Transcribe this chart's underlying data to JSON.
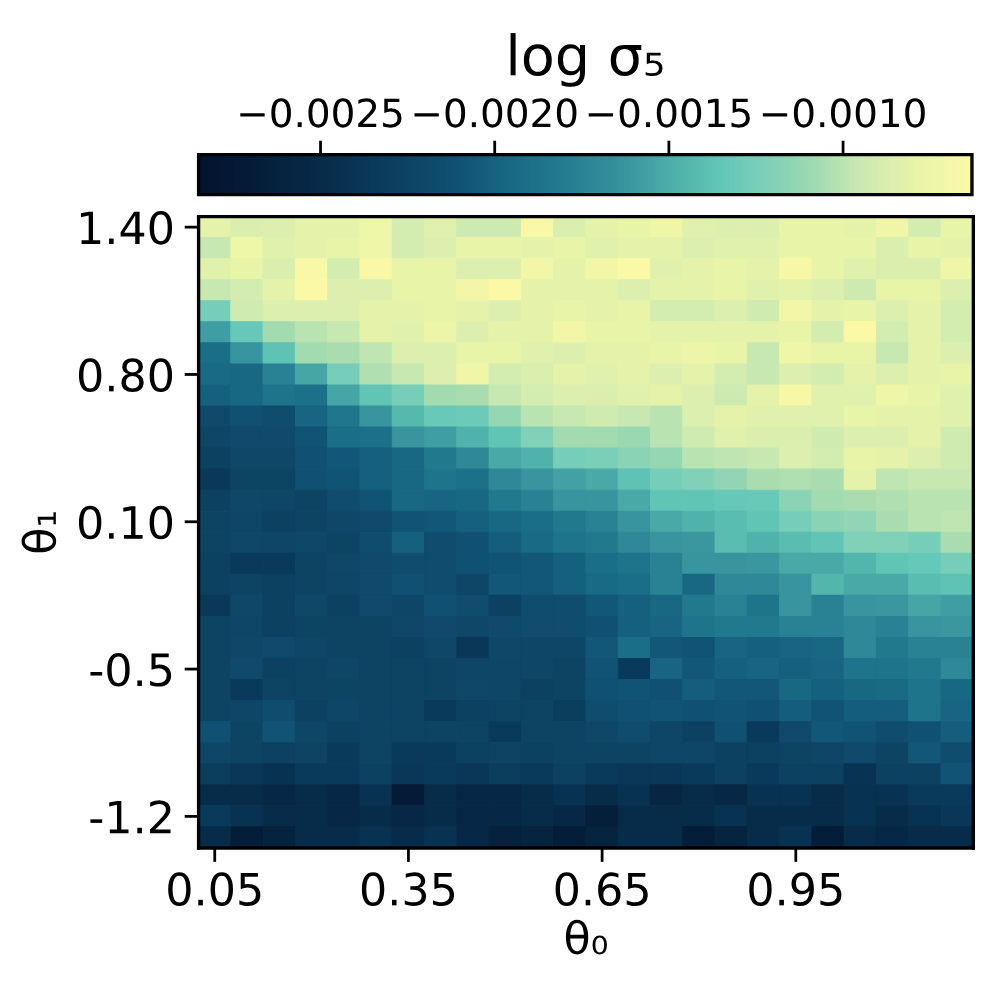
{
  "chart_data": {
    "type": "heatmap",
    "xlabel": "θ₀",
    "ylabel": "θ₁",
    "clabel": "log σ₅",
    "categories": [
      "0.05",
      null,
      null,
      null,
      null,
      null,
      "0.35",
      null,
      null,
      null,
      null,
      null,
      "0.65",
      null,
      null,
      null,
      null,
      null,
      "0.95",
      null,
      null,
      null,
      null,
      null
    ],
    "y_categories": [
      "1.40",
      null,
      null,
      null,
      null,
      null,
      null,
      "0.80",
      null,
      null,
      null,
      null,
      null,
      null,
      "0.10",
      null,
      null,
      null,
      null,
      null,
      null,
      "-0.5",
      null,
      null,
      null,
      null,
      null,
      null,
      "-1.2",
      null
    ],
    "clim": [
      -0.00285,
      -0.00063
    ],
    "cticks": [
      {
        "value": -0.0025,
        "label": "−0.0025"
      },
      {
        "value": -0.002,
        "label": "−0.0020"
      },
      {
        "value": -0.0015,
        "label": "−0.0015"
      },
      {
        "value": -0.001,
        "label": "−0.0010"
      }
    ],
    "cells": [
      [
        -0.00081,
        -0.00087,
        -0.00085,
        -0.00081,
        -0.00081,
        -0.00074,
        -0.0009,
        -0.00083,
        -0.00094,
        -0.00094,
        -0.00065,
        -0.00087,
        -0.00081,
        -0.00079,
        -0.00072,
        -0.00083,
        -0.00085,
        -0.00085,
        -0.00079,
        -0.00079,
        -0.00081,
        -0.00072,
        -0.0009,
        -0.00079
      ],
      [
        -0.00096,
        -0.00074,
        -0.00083,
        -0.00081,
        -0.00079,
        -0.00072,
        -0.0009,
        -0.00085,
        -0.00079,
        -0.00079,
        -0.00081,
        -0.00079,
        -0.00083,
        -0.00081,
        -0.00081,
        -0.00085,
        -0.00083,
        -0.00083,
        -0.00079,
        -0.00079,
        -0.00079,
        -0.00087,
        -0.00079,
        -0.00081
      ],
      [
        -0.00083,
        -0.00079,
        -0.00087,
        -0.00065,
        -0.0009,
        -0.00065,
        -0.00079,
        -0.00079,
        -0.00085,
        -0.00085,
        -0.0007,
        -0.00081,
        -0.0007,
        -0.00063,
        -0.00083,
        -0.00081,
        -0.00079,
        -0.00081,
        -0.00067,
        -0.00079,
        -0.00083,
        -0.00087,
        -0.00087,
        -0.00072
      ],
      [
        -0.00096,
        -0.0009,
        -0.00081,
        -0.00063,
        -0.00085,
        -0.00085,
        -0.00079,
        -0.00079,
        -0.0007,
        -0.00063,
        -0.00081,
        -0.00081,
        -0.00081,
        -0.00085,
        -0.00081,
        -0.00081,
        -0.00079,
        -0.00083,
        -0.00081,
        -0.00085,
        -0.00094,
        -0.00079,
        -0.00079,
        -0.00085
      ],
      [
        -0.00125,
        -0.00092,
        -0.00085,
        -0.00085,
        -0.00085,
        -0.00081,
        -0.00081,
        -0.00079,
        -0.00081,
        -0.00085,
        -0.00081,
        -0.00079,
        -0.00081,
        -0.00079,
        -0.0009,
        -0.0009,
        -0.00085,
        -0.00092,
        -0.0007,
        -0.00081,
        -0.00079,
        -0.00085,
        -0.00081,
        -0.0009
      ],
      [
        -0.00158,
        -0.00134,
        -0.00107,
        -0.00101,
        -0.00096,
        -0.00081,
        -0.00083,
        -0.00076,
        -0.00085,
        -0.00081,
        -0.00081,
        -0.0007,
        -0.00079,
        -0.00079,
        -0.00081,
        -0.00081,
        -0.00081,
        -0.00081,
        -0.00079,
        -0.0009,
        -0.00063,
        -0.0009,
        -0.00081,
        -0.0009
      ],
      [
        -0.00192,
        -0.00163,
        -0.00138,
        -0.00107,
        -0.00105,
        -0.00099,
        -0.00085,
        -0.00085,
        -0.00079,
        -0.00079,
        -0.00083,
        -0.00085,
        -0.00081,
        -0.00081,
        -0.00079,
        -0.00076,
        -0.00079,
        -0.00096,
        -0.00072,
        -0.00079,
        -0.00079,
        -0.00096,
        -0.00081,
        -0.00085
      ],
      [
        -0.00194,
        -0.00196,
        -0.00176,
        -0.00154,
        -0.00125,
        -0.00103,
        -0.00096,
        -0.00085,
        -0.00072,
        -0.0009,
        -0.00087,
        -0.00081,
        -0.00083,
        -0.00081,
        -0.00085,
        -0.00081,
        -0.0009,
        -0.00096,
        -0.00085,
        -0.0009,
        -0.00081,
        -0.00085,
        -0.00081,
        -0.00079
      ],
      [
        -0.00201,
        -0.00196,
        -0.00187,
        -0.0019,
        -0.00154,
        -0.00136,
        -0.00125,
        -0.00107,
        -0.00105,
        -0.00096,
        -0.0009,
        -0.00085,
        -0.00087,
        -0.00083,
        -0.00081,
        -0.00085,
        -0.00094,
        -0.00081,
        -0.00067,
        -0.00083,
        -0.00083,
        -0.00072,
        -0.00079,
        -0.00083
      ],
      [
        -0.00218,
        -0.00212,
        -0.00216,
        -0.00198,
        -0.00185,
        -0.00163,
        -0.00143,
        -0.00132,
        -0.0013,
        -0.00112,
        -0.00101,
        -0.00096,
        -0.00092,
        -0.00096,
        -0.00101,
        -0.00085,
        -0.00081,
        -0.00083,
        -0.00083,
        -0.00083,
        -0.00079,
        -0.00081,
        -0.00081,
        -0.00083
      ],
      [
        -0.00223,
        -0.00218,
        -0.00218,
        -0.0021,
        -0.00192,
        -0.0019,
        -0.00163,
        -0.00158,
        -0.00147,
        -0.00136,
        -0.00121,
        -0.00107,
        -0.00107,
        -0.0011,
        -0.00101,
        -0.00092,
        -0.00083,
        -0.00087,
        -0.00087,
        -0.00092,
        -0.00085,
        -0.00085,
        -0.00081,
        -0.00092
      ],
      [
        -0.00227,
        -0.00221,
        -0.00221,
        -0.00212,
        -0.00207,
        -0.00201,
        -0.00196,
        -0.00183,
        -0.00172,
        -0.00152,
        -0.00147,
        -0.00125,
        -0.00123,
        -0.00116,
        -0.00112,
        -0.00101,
        -0.00099,
        -0.00096,
        -0.00085,
        -0.0009,
        -0.00079,
        -0.00081,
        -0.00085,
        -0.00092
      ],
      [
        -0.00236,
        -0.00225,
        -0.00225,
        -0.00212,
        -0.0021,
        -0.00201,
        -0.00196,
        -0.00187,
        -0.0019,
        -0.00172,
        -0.00163,
        -0.00156,
        -0.00152,
        -0.00138,
        -0.00125,
        -0.00121,
        -0.00114,
        -0.00105,
        -0.00103,
        -0.00105,
        -0.00081,
        -0.00099,
        -0.00096,
        -0.00096
      ],
      [
        -0.00227,
        -0.00221,
        -0.00223,
        -0.00225,
        -0.00216,
        -0.0021,
        -0.00196,
        -0.00198,
        -0.00196,
        -0.00183,
        -0.00176,
        -0.00163,
        -0.00163,
        -0.00152,
        -0.00136,
        -0.00136,
        -0.00134,
        -0.00132,
        -0.00116,
        -0.00107,
        -0.00105,
        -0.00103,
        -0.00101,
        -0.00101
      ],
      [
        -0.00225,
        -0.00223,
        -0.00227,
        -0.00225,
        -0.00221,
        -0.00218,
        -0.0021,
        -0.00207,
        -0.00201,
        -0.00196,
        -0.00192,
        -0.00183,
        -0.00176,
        -0.00163,
        -0.00152,
        -0.00147,
        -0.00141,
        -0.00136,
        -0.00125,
        -0.00116,
        -0.00114,
        -0.00105,
        -0.00101,
        -0.00099
      ],
      [
        -0.00225,
        -0.00221,
        -0.00223,
        -0.00221,
        -0.00225,
        -0.00216,
        -0.00201,
        -0.00216,
        -0.00212,
        -0.00203,
        -0.00194,
        -0.00187,
        -0.00183,
        -0.00172,
        -0.00163,
        -0.00161,
        -0.00141,
        -0.00147,
        -0.00141,
        -0.00136,
        -0.00121,
        -0.00121,
        -0.00125,
        -0.00105
      ],
      [
        -0.00227,
        -0.00234,
        -0.00234,
        -0.00225,
        -0.00221,
        -0.00218,
        -0.00216,
        -0.00216,
        -0.00212,
        -0.0021,
        -0.00207,
        -0.00201,
        -0.00192,
        -0.00187,
        -0.00176,
        -0.00163,
        -0.00163,
        -0.00161,
        -0.00152,
        -0.00152,
        -0.00145,
        -0.00136,
        -0.00134,
        -0.00125
      ],
      [
        -0.00227,
        -0.00225,
        -0.00227,
        -0.00225,
        -0.00223,
        -0.00218,
        -0.00212,
        -0.00216,
        -0.00223,
        -0.00207,
        -0.00207,
        -0.00201,
        -0.00194,
        -0.00192,
        -0.00176,
        -0.00196,
        -0.00172,
        -0.00172,
        -0.00163,
        -0.00145,
        -0.00152,
        -0.00152,
        -0.00141,
        -0.00138
      ],
      [
        -0.00236,
        -0.00221,
        -0.00227,
        -0.00221,
        -0.00227,
        -0.00218,
        -0.00223,
        -0.00212,
        -0.00216,
        -0.00227,
        -0.00216,
        -0.00216,
        -0.00207,
        -0.00201,
        -0.00196,
        -0.00183,
        -0.00176,
        -0.00187,
        -0.00163,
        -0.00176,
        -0.00163,
        -0.00161,
        -0.00154,
        -0.00158
      ],
      [
        -0.00225,
        -0.00223,
        -0.00227,
        -0.00225,
        -0.00225,
        -0.00225,
        -0.00221,
        -0.00218,
        -0.00221,
        -0.00218,
        -0.00216,
        -0.00216,
        -0.00212,
        -0.00201,
        -0.00198,
        -0.00187,
        -0.00183,
        -0.00183,
        -0.00176,
        -0.00176,
        -0.00172,
        -0.00176,
        -0.00163,
        -0.00161
      ],
      [
        -0.00225,
        -0.00221,
        -0.00218,
        -0.00223,
        -0.00225,
        -0.00225,
        -0.00227,
        -0.00221,
        -0.00238,
        -0.00221,
        -0.00223,
        -0.00223,
        -0.00207,
        -0.00192,
        -0.00207,
        -0.0021,
        -0.00198,
        -0.00201,
        -0.00198,
        -0.00196,
        -0.00172,
        -0.00183,
        -0.00176,
        -0.00176
      ],
      [
        -0.00225,
        -0.00218,
        -0.00227,
        -0.00225,
        -0.00223,
        -0.00225,
        -0.00225,
        -0.00225,
        -0.00223,
        -0.00223,
        -0.00223,
        -0.00225,
        -0.0021,
        -0.00234,
        -0.00198,
        -0.00207,
        -0.00201,
        -0.00198,
        -0.00201,
        -0.00198,
        -0.00187,
        -0.00187,
        -0.00183,
        -0.00172
      ],
      [
        -0.00225,
        -0.00234,
        -0.00225,
        -0.00225,
        -0.00225,
        -0.00225,
        -0.00225,
        -0.00225,
        -0.00221,
        -0.00223,
        -0.00227,
        -0.00225,
        -0.00212,
        -0.0021,
        -0.00212,
        -0.00203,
        -0.00207,
        -0.00207,
        -0.00196,
        -0.00201,
        -0.00196,
        -0.00194,
        -0.00187,
        -0.00196
      ],
      [
        -0.00225,
        -0.00223,
        -0.00216,
        -0.00227,
        -0.00223,
        -0.00225,
        -0.00225,
        -0.00234,
        -0.00227,
        -0.00225,
        -0.00225,
        -0.00232,
        -0.00216,
        -0.00212,
        -0.0021,
        -0.00212,
        -0.0021,
        -0.00212,
        -0.00203,
        -0.0021,
        -0.00203,
        -0.00203,
        -0.00187,
        -0.00198
      ],
      [
        -0.00212,
        -0.00225,
        -0.0021,
        -0.00223,
        -0.00227,
        -0.00225,
        -0.00225,
        -0.00225,
        -0.00225,
        -0.00234,
        -0.00225,
        -0.00225,
        -0.00221,
        -0.00216,
        -0.00223,
        -0.00227,
        -0.00212,
        -0.00234,
        -0.00218,
        -0.00207,
        -0.0021,
        -0.00216,
        -0.00212,
        -0.00203
      ],
      [
        -0.00223,
        -0.00225,
        -0.00227,
        -0.00225,
        -0.00234,
        -0.00225,
        -0.00234,
        -0.00234,
        -0.00227,
        -0.00225,
        -0.00227,
        -0.00225,
        -0.00225,
        -0.00225,
        -0.00223,
        -0.00223,
        -0.00227,
        -0.00227,
        -0.00225,
        -0.00223,
        -0.00218,
        -0.00225,
        -0.00207,
        -0.00216
      ],
      [
        -0.00232,
        -0.00238,
        -0.00243,
        -0.00234,
        -0.00234,
        -0.00227,
        -0.00238,
        -0.00234,
        -0.00238,
        -0.00232,
        -0.00234,
        -0.00227,
        -0.00234,
        -0.00238,
        -0.00238,
        -0.00234,
        -0.00227,
        -0.00234,
        -0.00227,
        -0.00227,
        -0.00241,
        -0.00227,
        -0.00227,
        -0.0021
      ],
      [
        -0.00249,
        -0.00249,
        -0.00254,
        -0.00249,
        -0.00254,
        -0.00243,
        -0.00274,
        -0.00249,
        -0.00254,
        -0.00254,
        -0.00249,
        -0.00243,
        -0.00249,
        -0.00243,
        -0.00258,
        -0.00249,
        -0.00254,
        -0.00243,
        -0.00243,
        -0.00249,
        -0.00243,
        -0.00243,
        -0.00234,
        -0.00234
      ],
      [
        -0.00234,
        -0.00243,
        -0.00249,
        -0.00249,
        -0.00254,
        -0.00249,
        -0.00254,
        -0.00249,
        -0.00254,
        -0.00254,
        -0.00249,
        -0.00254,
        -0.00267,
        -0.00249,
        -0.00249,
        -0.00249,
        -0.00243,
        -0.00249,
        -0.00249,
        -0.00249,
        -0.00243,
        -0.00249,
        -0.00243,
        -0.00238
      ],
      [
        -0.00249,
        -0.0027,
        -0.00263,
        -0.00249,
        -0.00249,
        -0.00243,
        -0.00249,
        -0.00243,
        -0.00254,
        -0.00265,
        -0.00261,
        -0.0027,
        -0.00261,
        -0.00249,
        -0.00249,
        -0.0027,
        -0.00261,
        -0.00249,
        -0.00243,
        -0.0027,
        -0.00249,
        -0.00254,
        -0.00249,
        -0.00249
      ]
    ]
  }
}
